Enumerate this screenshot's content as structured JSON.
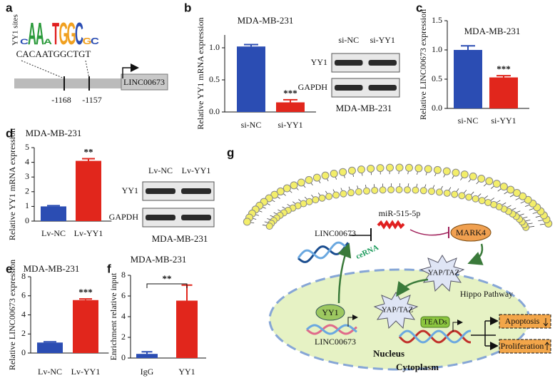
{
  "panel_a": {
    "label": "a",
    "logo_label": "YY1 sites",
    "logo": [
      "C",
      "A",
      "A",
      "A",
      "T",
      "G",
      "G",
      "C",
      "G",
      "C"
    ],
    "sequence": "CACAATGGCTGT",
    "positions": [
      "-1168",
      "-1157"
    ],
    "gene": "LINC00673"
  },
  "blots": [
    {
      "lanes": [
        "si-NC",
        "si-YY1"
      ],
      "rows": [
        "YY1",
        "GAPDH"
      ],
      "caption": "MDA-MB-231"
    },
    {
      "lanes": [
        "Lv-NC",
        "Lv-YY1"
      ],
      "rows": [
        "YY1",
        "GAPDH"
      ],
      "caption": "MDA-MB-231"
    }
  ],
  "chart_data": [
    {
      "type": "bar",
      "panel": "b",
      "title": "MDA-MB-231",
      "ylabel": "Relative YY1 mRNA expression",
      "categories": [
        "si-NC",
        "si-YY1"
      ],
      "values": [
        1.02,
        0.15
      ],
      "errors": [
        0.03,
        0.04
      ],
      "colors": [
        "#2b4db3",
        "#e1261c"
      ],
      "significance": [
        null,
        "***"
      ],
      "ylim": [
        0,
        1.2
      ],
      "yticks": [
        {
          "value": 0,
          "label": "0.0"
        },
        {
          "value": 0.5,
          "label": "0.5"
        },
        {
          "value": 1,
          "label": "1.0"
        }
      ]
    },
    {
      "type": "bar",
      "panel": "c",
      "title": "MDA-MB-231",
      "ylabel": "Relative LINC00673 expression",
      "categories": [
        "si-NC",
        "si-YY1"
      ],
      "values": [
        1.0,
        0.53
      ],
      "errors": [
        0.07,
        0.03
      ],
      "colors": [
        "#2b4db3",
        "#e1261c"
      ],
      "significance": [
        null,
        "***"
      ],
      "ylim": [
        0,
        1.5
      ],
      "yticks": [
        {
          "value": 0,
          "label": "0.0"
        },
        {
          "value": 0.5,
          "label": "0.5"
        },
        {
          "value": 1,
          "label": "1.0"
        },
        {
          "value": 1.5,
          "label": "1.5"
        }
      ]
    },
    {
      "type": "bar",
      "panel": "d",
      "title": "MDA-MB-231",
      "ylabel": "Relative YY1 mRNA expression",
      "categories": [
        "Lv-NC",
        "Lv-YY1"
      ],
      "values": [
        1.0,
        4.1
      ],
      "errors": [
        0.05,
        0.15
      ],
      "colors": [
        "#2b4db3",
        "#e1261c"
      ],
      "significance": [
        null,
        "**"
      ],
      "ylim": [
        0,
        5
      ],
      "yticks": [
        0,
        1,
        2,
        3,
        4,
        5
      ]
    },
    {
      "type": "bar",
      "panel": "e",
      "title": "MDA-MB-231",
      "ylabel": "Relative LINC00673 expression",
      "categories": [
        "Lv-NC",
        "Lv-YY1"
      ],
      "values": [
        1.1,
        5.55
      ],
      "errors": [
        0.08,
        0.12
      ],
      "colors": [
        "#2b4db3",
        "#e1261c"
      ],
      "significance": [
        null,
        "***"
      ],
      "ylim": [
        0,
        8
      ],
      "yticks": [
        0,
        2,
        4,
        6,
        8
      ]
    },
    {
      "type": "bar",
      "panel": "f",
      "title": "MDA-MB-231",
      "ylabel": "Enrichment relative input",
      "categories": [
        "IgG",
        "YY1"
      ],
      "values": [
        0.4,
        5.55
      ],
      "errors": [
        0.2,
        1.5
      ],
      "colors": [
        "#2b4db3",
        "#e1261c"
      ],
      "significance": [
        null,
        "**"
      ],
      "significance_bracket": true,
      "ylim": [
        0,
        8
      ],
      "yticks": [
        0,
        2,
        4,
        6,
        8
      ]
    }
  ],
  "panel_g": {
    "label": "g",
    "lncrna": "LINC00673",
    "cerna": "ceRNA",
    "mirna": "miR-515-5p",
    "kinase": "MARK4",
    "yap_cyto": "YAP/TAZ",
    "pathway": "Hippo Pathway",
    "tf": "YY1",
    "gene": "LINC00673",
    "yap_nuc": "YAP/TAZ",
    "teads": "TEADs",
    "nucleus": "Nucleus",
    "cytoplasm": "Cytoplasm",
    "apoptosis": "Apoptosis",
    "proliferation": "Proliferation"
  }
}
